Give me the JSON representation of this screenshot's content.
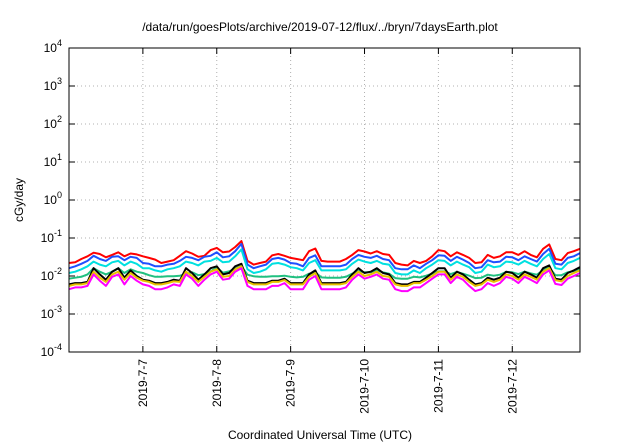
{
  "chart_data": {
    "type": "line",
    "title": "/data/run/goesPlots/archive/2019-07-12/flux/../bryn/7daysEarth.plot",
    "xlabel": "Coordinated Universal Time (UTC)",
    "ylabel": "cGy/day",
    "yscale": "log",
    "ylim": [
      0.0001,
      10000
    ],
    "y_ticks": [
      {
        "value": 0.0001,
        "base": "10",
        "exp": "-4"
      },
      {
        "value": 0.001,
        "base": "10",
        "exp": "-3"
      },
      {
        "value": 0.01,
        "base": "10",
        "exp": "-2"
      },
      {
        "value": 0.1,
        "base": "10",
        "exp": "-1"
      },
      {
        "value": 1,
        "base": "10",
        "exp": "0"
      },
      {
        "value": 10,
        "base": "10",
        "exp": "1"
      },
      {
        "value": 100,
        "base": "10",
        "exp": "2"
      },
      {
        "value": 1000,
        "base": "10",
        "exp": "3"
      },
      {
        "value": 10000,
        "base": "10",
        "exp": "4"
      }
    ],
    "xlim": [
      "2019-07-06T00:00",
      "2019-07-12T22:00"
    ],
    "x_ticks": [
      "2019-7-7",
      "2019-7-8",
      "2019-7-9",
      "2019-7-10",
      "2019-7-11",
      "2019-7-12"
    ],
    "grid": true,
    "legend": "none",
    "x": [
      "2019-07-06T00:00",
      "2019-07-06T02:00",
      "2019-07-06T04:00",
      "2019-07-06T06:00",
      "2019-07-06T08:00",
      "2019-07-06T10:00",
      "2019-07-06T12:00",
      "2019-07-06T14:00",
      "2019-07-06T16:00",
      "2019-07-06T18:00",
      "2019-07-06T20:00",
      "2019-07-06T22:00",
      "2019-07-07T00:00",
      "2019-07-07T02:00",
      "2019-07-07T04:00",
      "2019-07-07T06:00",
      "2019-07-07T08:00",
      "2019-07-07T10:00",
      "2019-07-07T12:00",
      "2019-07-07T14:00",
      "2019-07-07T16:00",
      "2019-07-07T18:00",
      "2019-07-07T20:00",
      "2019-07-07T22:00",
      "2019-07-08T00:00",
      "2019-07-08T02:00",
      "2019-07-08T04:00",
      "2019-07-08T06:00",
      "2019-07-08T08:00",
      "2019-07-08T10:00",
      "2019-07-08T12:00",
      "2019-07-08T14:00",
      "2019-07-08T16:00",
      "2019-07-08T18:00",
      "2019-07-08T20:00",
      "2019-07-08T22:00",
      "2019-07-09T00:00",
      "2019-07-09T02:00",
      "2019-07-09T04:00",
      "2019-07-09T06:00",
      "2019-07-09T08:00",
      "2019-07-09T10:00",
      "2019-07-09T12:00",
      "2019-07-09T14:00",
      "2019-07-09T16:00",
      "2019-07-09T18:00",
      "2019-07-09T20:00",
      "2019-07-09T22:00",
      "2019-07-10T00:00",
      "2019-07-10T02:00",
      "2019-07-10T04:00",
      "2019-07-10T06:00",
      "2019-07-10T08:00",
      "2019-07-10T10:00",
      "2019-07-10T12:00",
      "2019-07-10T14:00",
      "2019-07-10T16:00",
      "2019-07-10T18:00",
      "2019-07-10T20:00",
      "2019-07-10T22:00",
      "2019-07-11T00:00",
      "2019-07-11T02:00",
      "2019-07-11T04:00",
      "2019-07-11T06:00",
      "2019-07-11T08:00",
      "2019-07-11T10:00",
      "2019-07-11T12:00",
      "2019-07-11T14:00",
      "2019-07-11T16:00",
      "2019-07-11T18:00",
      "2019-07-11T20:00",
      "2019-07-11T22:00",
      "2019-07-12T00:00",
      "2019-07-12T02:00",
      "2019-07-12T04:00",
      "2019-07-12T06:00",
      "2019-07-12T08:00",
      "2019-07-12T10:00",
      "2019-07-12T12:00",
      "2019-07-12T14:00",
      "2019-07-12T16:00",
      "2019-07-12T18:00",
      "2019-07-12T20:00",
      "2019-07-12T22:00"
    ],
    "series": [
      {
        "color": "#ff0000",
        "values": [
          0.022,
          0.023,
          0.028,
          0.033,
          0.041,
          0.038,
          0.031,
          0.036,
          0.042,
          0.033,
          0.039,
          0.037,
          0.033,
          0.03,
          0.027,
          0.022,
          0.024,
          0.026,
          0.034,
          0.045,
          0.039,
          0.032,
          0.034,
          0.048,
          0.055,
          0.042,
          0.044,
          0.058,
          0.083,
          0.025,
          0.02,
          0.022,
          0.024,
          0.035,
          0.038,
          0.034,
          0.03,
          0.028,
          0.026,
          0.045,
          0.053,
          0.025,
          0.024,
          0.024,
          0.024,
          0.028,
          0.036,
          0.048,
          0.044,
          0.039,
          0.045,
          0.038,
          0.036,
          0.022,
          0.02,
          0.019,
          0.025,
          0.022,
          0.025,
          0.033,
          0.048,
          0.045,
          0.033,
          0.042,
          0.036,
          0.03,
          0.022,
          0.023,
          0.036,
          0.03,
          0.033,
          0.042,
          0.042,
          0.036,
          0.045,
          0.036,
          0.031,
          0.052,
          0.068,
          0.028,
          0.026,
          0.04,
          0.045,
          0.052
        ]
      },
      {
        "color": "#1f4fff",
        "values": [
          0.016,
          0.018,
          0.021,
          0.025,
          0.034,
          0.028,
          0.025,
          0.032,
          0.033,
          0.026,
          0.032,
          0.03,
          0.022,
          0.021,
          0.018,
          0.018,
          0.02,
          0.021,
          0.025,
          0.032,
          0.03,
          0.026,
          0.032,
          0.034,
          0.042,
          0.031,
          0.033,
          0.045,
          0.07,
          0.02,
          0.016,
          0.018,
          0.02,
          0.028,
          0.03,
          0.027,
          0.022,
          0.021,
          0.018,
          0.03,
          0.035,
          0.018,
          0.018,
          0.018,
          0.018,
          0.02,
          0.028,
          0.036,
          0.032,
          0.03,
          0.034,
          0.028,
          0.026,
          0.016,
          0.015,
          0.015,
          0.019,
          0.016,
          0.021,
          0.026,
          0.035,
          0.034,
          0.025,
          0.032,
          0.027,
          0.022,
          0.016,
          0.017,
          0.026,
          0.023,
          0.024,
          0.032,
          0.031,
          0.026,
          0.033,
          0.028,
          0.024,
          0.038,
          0.052,
          0.021,
          0.02,
          0.03,
          0.033,
          0.04
        ]
      },
      {
        "color": "#00e0e0",
        "values": [
          0.012,
          0.013,
          0.015,
          0.018,
          0.024,
          0.02,
          0.018,
          0.023,
          0.025,
          0.019,
          0.024,
          0.021,
          0.016,
          0.016,
          0.014,
          0.013,
          0.015,
          0.016,
          0.018,
          0.024,
          0.022,
          0.019,
          0.024,
          0.025,
          0.03,
          0.023,
          0.024,
          0.033,
          0.05,
          0.015,
          0.012,
          0.013,
          0.015,
          0.021,
          0.022,
          0.02,
          0.017,
          0.016,
          0.014,
          0.022,
          0.026,
          0.014,
          0.014,
          0.014,
          0.014,
          0.015,
          0.021,
          0.027,
          0.024,
          0.022,
          0.025,
          0.021,
          0.02,
          0.012,
          0.011,
          0.011,
          0.014,
          0.012,
          0.016,
          0.02,
          0.026,
          0.025,
          0.019,
          0.024,
          0.02,
          0.017,
          0.012,
          0.013,
          0.02,
          0.017,
          0.018,
          0.024,
          0.023,
          0.02,
          0.025,
          0.021,
          0.018,
          0.028,
          0.038,
          0.016,
          0.015,
          0.022,
          0.025,
          0.03
        ]
      },
      {
        "color": "#20c080",
        "values": [
          0.0085,
          0.009,
          0.0095,
          0.011,
          0.016,
          0.013,
          0.011,
          0.013,
          0.016,
          0.012,
          0.015,
          0.013,
          0.012,
          0.0105,
          0.0095,
          0.0095,
          0.0098,
          0.0098,
          0.0102,
          0.0112,
          0.0125,
          0.0105,
          0.0112,
          0.0133,
          0.0165,
          0.0122,
          0.0132,
          0.0158,
          0.0182,
          0.0108,
          0.0098,
          0.0095,
          0.0095,
          0.0098,
          0.0098,
          0.0102,
          0.0095,
          0.0092,
          0.0095,
          0.0115,
          0.0125,
          0.0092,
          0.009,
          0.009,
          0.009,
          0.0095,
          0.0115,
          0.0135,
          0.0125,
          0.0125,
          0.014,
          0.0125,
          0.0115,
          0.0088,
          0.0085,
          0.0085,
          0.0095,
          0.0092,
          0.0102,
          0.0115,
          0.0132,
          0.0132,
          0.0112,
          0.0128,
          0.0115,
          0.0102,
          0.0088,
          0.009,
          0.0108,
          0.0102,
          0.0108,
          0.0128,
          0.0125,
          0.0112,
          0.013,
          0.0118,
          0.0108,
          0.0142,
          0.0168,
          0.0105,
          0.0105,
          0.0125,
          0.0135,
          0.0152
        ]
      },
      {
        "color": "#000000",
        "values": [
          0.006,
          0.0065,
          0.0065,
          0.007,
          0.016,
          0.011,
          0.008,
          0.013,
          0.016,
          0.009,
          0.014,
          0.01,
          0.008,
          0.0075,
          0.0065,
          0.0065,
          0.007,
          0.008,
          0.0075,
          0.016,
          0.012,
          0.008,
          0.011,
          0.016,
          0.018,
          0.011,
          0.012,
          0.018,
          0.021,
          0.0075,
          0.0065,
          0.0065,
          0.0065,
          0.0075,
          0.0075,
          0.0085,
          0.0065,
          0.0065,
          0.0065,
          0.011,
          0.014,
          0.0065,
          0.0065,
          0.0065,
          0.0065,
          0.007,
          0.011,
          0.016,
          0.012,
          0.013,
          0.016,
          0.012,
          0.011,
          0.0065,
          0.006,
          0.006,
          0.007,
          0.007,
          0.009,
          0.012,
          0.016,
          0.016,
          0.009,
          0.013,
          0.011,
          0.008,
          0.006,
          0.0065,
          0.009,
          0.008,
          0.009,
          0.013,
          0.012,
          0.009,
          0.013,
          0.011,
          0.009,
          0.016,
          0.019,
          0.0085,
          0.008,
          0.012,
          0.014,
          0.017
        ]
      },
      {
        "color": "#e8c000",
        "values": [
          0.0055,
          0.006,
          0.006,
          0.0065,
          0.013,
          0.009,
          0.007,
          0.011,
          0.013,
          0.008,
          0.012,
          0.009,
          0.0075,
          0.007,
          0.006,
          0.006,
          0.0065,
          0.0072,
          0.007,
          0.013,
          0.01,
          0.007,
          0.0095,
          0.013,
          0.015,
          0.0095,
          0.01,
          0.015,
          0.018,
          0.007,
          0.006,
          0.006,
          0.006,
          0.007,
          0.007,
          0.0078,
          0.006,
          0.006,
          0.006,
          0.0095,
          0.012,
          0.006,
          0.006,
          0.006,
          0.006,
          0.0065,
          0.0095,
          0.013,
          0.01,
          0.011,
          0.013,
          0.01,
          0.0095,
          0.006,
          0.0055,
          0.0055,
          0.0065,
          0.0065,
          0.008,
          0.01,
          0.013,
          0.013,
          0.008,
          0.011,
          0.0095,
          0.007,
          0.0055,
          0.006,
          0.008,
          0.007,
          0.008,
          0.011,
          0.01,
          0.008,
          0.011,
          0.0095,
          0.008,
          0.013,
          0.016,
          0.0078,
          0.0072,
          0.01,
          0.012,
          0.014
        ]
      },
      {
        "color": "#ff00ff",
        "values": [
          0.0045,
          0.005,
          0.005,
          0.0055,
          0.011,
          0.0075,
          0.0055,
          0.0095,
          0.011,
          0.006,
          0.01,
          0.0075,
          0.006,
          0.0055,
          0.0045,
          0.0045,
          0.005,
          0.006,
          0.0055,
          0.011,
          0.0085,
          0.0055,
          0.008,
          0.011,
          0.013,
          0.008,
          0.0085,
          0.013,
          0.016,
          0.0055,
          0.0045,
          0.0045,
          0.0045,
          0.0055,
          0.0055,
          0.0065,
          0.0045,
          0.0045,
          0.0045,
          0.008,
          0.01,
          0.0045,
          0.0045,
          0.0045,
          0.0045,
          0.005,
          0.008,
          0.011,
          0.0085,
          0.0095,
          0.011,
          0.0085,
          0.008,
          0.0045,
          0.004,
          0.004,
          0.005,
          0.005,
          0.0065,
          0.0085,
          0.011,
          0.011,
          0.0065,
          0.0095,
          0.008,
          0.0055,
          0.004,
          0.0045,
          0.0065,
          0.0055,
          0.0065,
          0.0095,
          0.0085,
          0.0065,
          0.0095,
          0.008,
          0.0065,
          0.011,
          0.014,
          0.0062,
          0.0058,
          0.0085,
          0.01,
          0.012
        ]
      }
    ]
  }
}
